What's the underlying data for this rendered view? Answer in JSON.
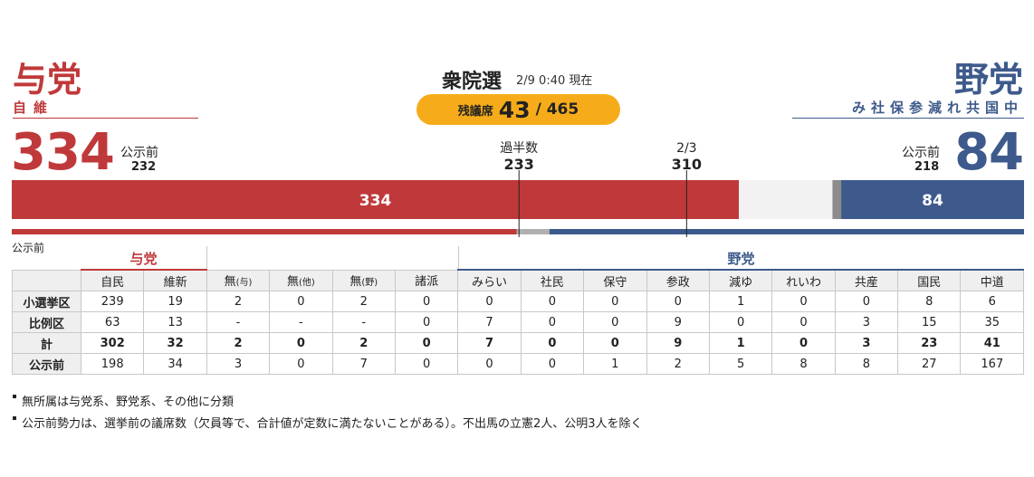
{
  "header": {
    "ruling_title": "与党",
    "ruling_members": "自維",
    "opposition_title": "野党",
    "opposition_members": "み社保参減れ共国中",
    "election_title": "衆院選",
    "election_time": "2/9 0:40 現在",
    "remaining_label": "残議席",
    "remaining_value": "43",
    "remaining_total": "/ 465"
  },
  "summary": {
    "ruling_seats": "334",
    "ruling_prev_label": "公示前",
    "ruling_prev": "232",
    "opposition_seats": "84",
    "opposition_prev_label": "公示前",
    "opposition_prev": "218"
  },
  "colors": {
    "ruling": "#c0393a",
    "opposition": "#3e5a8c",
    "remaining": "#f6ac1a",
    "undecided": "#f2f2f2",
    "others": "#8c8c8c"
  },
  "chart_data": {
    "type": "bar",
    "orientation": "horizontal-stacked",
    "total": 465,
    "series": [
      {
        "name": "与党",
        "value": 334
      },
      {
        "name": "未確定",
        "value": 43
      },
      {
        "name": "その他",
        "value": 4
      },
      {
        "name": "野党",
        "value": 84
      }
    ],
    "markers": [
      {
        "label": "過半数",
        "value": 233
      },
      {
        "label": "2/3",
        "value": 310
      }
    ],
    "previous_strength": {
      "label": "公示前",
      "series": [
        {
          "name": "与党",
          "value": 232
        },
        {
          "name": "その他",
          "value": 15
        },
        {
          "name": "野党",
          "value": 218
        }
      ]
    }
  },
  "table": {
    "prev_label": "公示前",
    "ruling_group": "与党",
    "opposition_group": "野党",
    "columns": [
      {
        "label": "自民",
        "sub": ""
      },
      {
        "label": "維新",
        "sub": ""
      },
      {
        "label": "無",
        "sub": "(与)"
      },
      {
        "label": "無",
        "sub": "(他)"
      },
      {
        "label": "無",
        "sub": "(野)"
      },
      {
        "label": "諸派",
        "sub": ""
      },
      {
        "label": "みらい",
        "sub": ""
      },
      {
        "label": "社民",
        "sub": ""
      },
      {
        "label": "保守",
        "sub": ""
      },
      {
        "label": "参政",
        "sub": ""
      },
      {
        "label": "減ゆ",
        "sub": ""
      },
      {
        "label": "れいわ",
        "sub": ""
      },
      {
        "label": "共産",
        "sub": ""
      },
      {
        "label": "国民",
        "sub": ""
      },
      {
        "label": "中道",
        "sub": ""
      }
    ],
    "rows": [
      {
        "label": "小選挙区",
        "values": [
          "239",
          "19",
          "2",
          "0",
          "2",
          "0",
          "0",
          "0",
          "0",
          "0",
          "1",
          "0",
          "0",
          "8",
          "6"
        ]
      },
      {
        "label": "比例区",
        "values": [
          "63",
          "13",
          "-",
          "-",
          "-",
          "0",
          "7",
          "0",
          "0",
          "9",
          "0",
          "0",
          "3",
          "15",
          "35"
        ]
      },
      {
        "label": "計",
        "values": [
          "302",
          "32",
          "2",
          "0",
          "2",
          "0",
          "7",
          "0",
          "0",
          "9",
          "1",
          "0",
          "3",
          "23",
          "41"
        ]
      },
      {
        "label": "公示前",
        "values": [
          "198",
          "34",
          "3",
          "0",
          "7",
          "0",
          "0",
          "0",
          "1",
          "2",
          "5",
          "8",
          "8",
          "27",
          "167"
        ]
      }
    ]
  },
  "notes": [
    "無所属は与党系、野党系、その他に分類",
    "公示前勢力は、選挙前の議席数（欠員等で、合計値が定数に満たないことがある）。不出馬の立憲2人、公明3人を除く"
  ]
}
